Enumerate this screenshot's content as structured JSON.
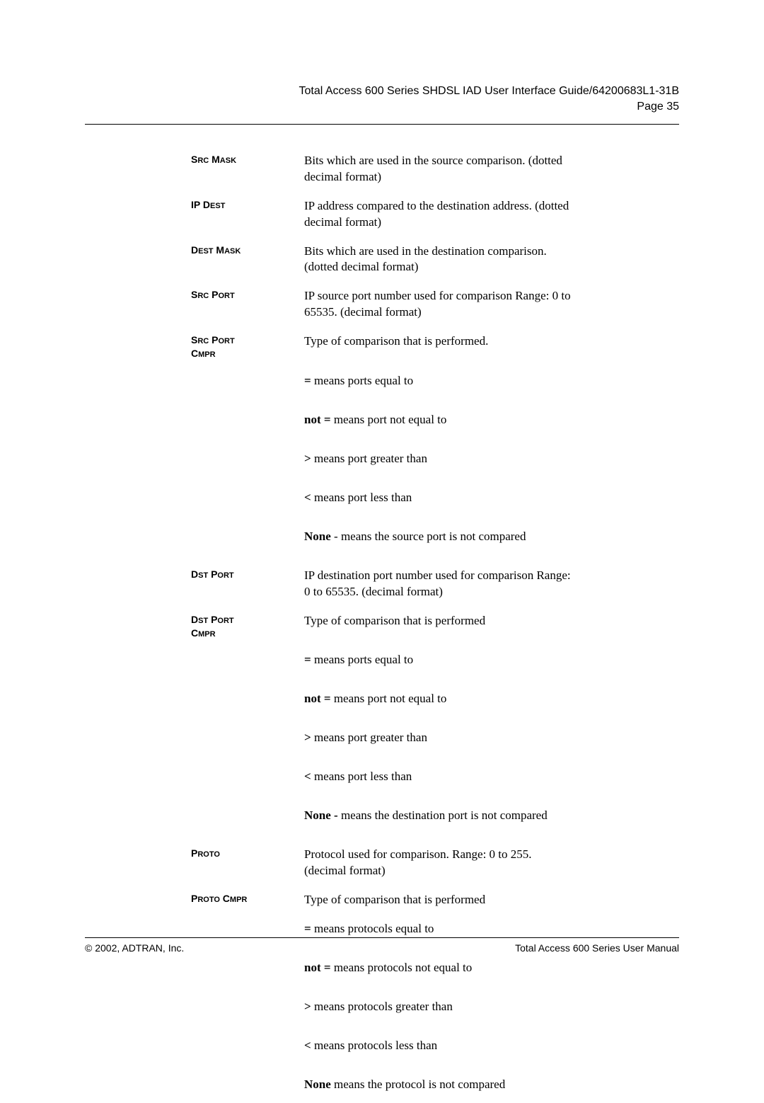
{
  "header": {
    "title": "Total Access 600 Series SHDSL IAD User Interface Guide/64200683L1-31B",
    "page": "Page 35"
  },
  "defs": [
    {
      "term_main": "S",
      "term_rest": "RC",
      "term_main2": " M",
      "term_rest2": "ASK",
      "desc": "Bits which are used in the source comparison. (dotted decimal format)"
    },
    {
      "term_main": "IP D",
      "term_rest": "EST",
      "term_main2": "",
      "term_rest2": "",
      "desc": "IP address compared to the destination address. (dotted decimal format)"
    },
    {
      "term_main": "D",
      "term_rest": "EST",
      "term_main2": " M",
      "term_rest2": "ASK",
      "desc": "Bits which are used in the destination comparison. (dotted decimal format)"
    },
    {
      "term_main": "S",
      "term_rest": "RC",
      "term_main2": " P",
      "term_rest2": "ORT",
      "desc": "IP source port number used for comparison Range: 0 to 65535. (decimal format)"
    }
  ],
  "srcportcmpr": {
    "term_line1_a": "S",
    "term_line1_b": "RC",
    "term_line1_c": " P",
    "term_line1_d": "ORT",
    "term_line2_a": "C",
    "term_line2_b": "MPR",
    "desc": "Type of comparison that is performed.",
    "subs": [
      {
        "b": "=",
        "t": " means ports equal to"
      },
      {
        "b": "not =",
        "t": " means port not equal to"
      },
      {
        "b": ">",
        "t": " means port greater than"
      },
      {
        "b": "<",
        "t": " means port less than"
      },
      {
        "b": "None",
        "t": " - means the source port is not compared"
      }
    ]
  },
  "dstport": {
    "term_a": "D",
    "term_b": "ST",
    "term_c": " P",
    "term_d": "ORT",
    "desc": "IP destination port number used for comparison Range: 0 to 65535. (decimal format)"
  },
  "dstportcmpr": {
    "term_line1_a": "D",
    "term_line1_b": "ST",
    "term_line1_c": " P",
    "term_line1_d": "ORT",
    "term_line2_a": "C",
    "term_line2_b": "MPR",
    "desc": "Type of comparison that is performed",
    "subs": [
      {
        "b": "=",
        "t": " means ports equal to"
      },
      {
        "b": "not =",
        "t": " means port not equal to"
      },
      {
        "b": ">",
        "t": " means port greater than"
      },
      {
        "b": "<",
        "t": "   means port less than"
      },
      {
        "b": "None -",
        "t": " means the destination port is not compared"
      }
    ]
  },
  "proto": {
    "term_a": "P",
    "term_b": "ROTO",
    "desc": "Protocol used for comparison. Range: 0 to 255. (decimal format)"
  },
  "protocmpr": {
    "term_a": "P",
    "term_b": "ROTO",
    "term_c": " C",
    "term_d": "MPR",
    "desc": "Type of comparison that is performed",
    "subs": [
      {
        "b": "=",
        "t": " means protocols equal to"
      },
      {
        "b": "not =",
        "t": "   means protocols not equal to"
      },
      {
        "b": ">",
        "t": " means protocols greater than"
      },
      {
        "b": "<",
        "t": "   means protocols less than"
      },
      {
        "b": "None",
        "t": " means the protocol is not compared"
      }
    ]
  },
  "footer": {
    "left": "© 2002, ADTRAN, Inc.",
    "right": "Total Access 600 Series User Manual"
  }
}
